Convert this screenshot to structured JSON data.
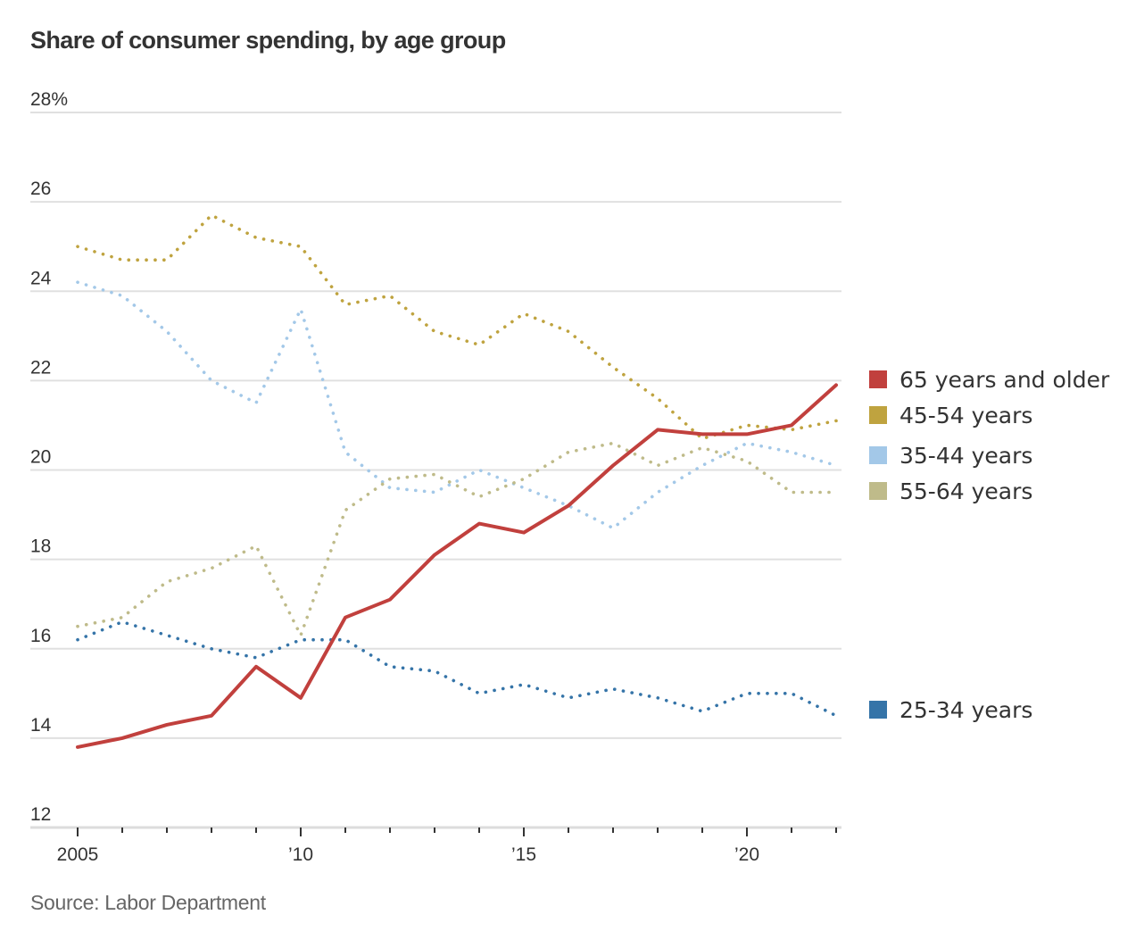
{
  "title": "Share of consumer spending, by age group",
  "source": "Source: Labor Department",
  "chart_data": {
    "type": "line",
    "title": "Share of consumer spending, by age group",
    "xlabel": "",
    "ylabel": "",
    "x": [
      2005,
      2006,
      2007,
      2008,
      2009,
      2010,
      2011,
      2012,
      2013,
      2014,
      2015,
      2016,
      2017,
      2018,
      2019,
      2020,
      2021,
      2022
    ],
    "xlim": [
      2005,
      2022
    ],
    "ylim": [
      12,
      28
    ],
    "y_ticks": [
      {
        "value": 28,
        "label": "28%"
      },
      {
        "value": 26,
        "label": "26"
      },
      {
        "value": 24,
        "label": "24"
      },
      {
        "value": 22,
        "label": "22"
      },
      {
        "value": 20,
        "label": "20"
      },
      {
        "value": 18,
        "label": "18"
      },
      {
        "value": 16,
        "label": "16"
      },
      {
        "value": 14,
        "label": "14"
      },
      {
        "value": 12,
        "label": "12"
      }
    ],
    "x_ticks": [
      {
        "value": 2005,
        "label": "2005"
      },
      {
        "value": 2010,
        "label": "’10"
      },
      {
        "value": 2015,
        "label": "’15"
      },
      {
        "value": 2020,
        "label": "’20"
      }
    ],
    "grid": true,
    "legend_position": "right, inline at line ends",
    "series": [
      {
        "name": "65 years and older",
        "color": "#c1403d",
        "style": "solid",
        "values": [
          13.8,
          14.0,
          14.3,
          14.5,
          15.6,
          14.9,
          16.7,
          17.1,
          18.1,
          18.8,
          18.6,
          19.2,
          20.1,
          20.9,
          20.8,
          20.8,
          21.0,
          21.9
        ]
      },
      {
        "name": "45-54 years",
        "color": "#bfa33f",
        "style": "dotted",
        "values": [
          25.0,
          24.7,
          24.7,
          25.7,
          25.2,
          25.0,
          23.7,
          23.9,
          23.1,
          22.8,
          23.5,
          23.1,
          22.3,
          21.6,
          20.7,
          21.0,
          20.9,
          21.1
        ]
      },
      {
        "name": "35-44 years",
        "color": "#a3c8e8",
        "style": "dotted",
        "values": [
          24.2,
          23.9,
          23.1,
          22.0,
          21.5,
          23.6,
          20.4,
          19.6,
          19.5,
          20.0,
          19.6,
          19.2,
          18.7,
          19.5,
          20.1,
          20.6,
          20.4,
          20.1
        ]
      },
      {
        "name": "55-64 years",
        "color": "#bfbb8a",
        "style": "dotted",
        "values": [
          16.5,
          16.7,
          17.5,
          17.8,
          18.3,
          16.3,
          19.1,
          19.8,
          19.9,
          19.4,
          19.8,
          20.4,
          20.6,
          20.1,
          20.5,
          20.2,
          19.5,
          19.5
        ]
      },
      {
        "name": "25-34 years",
        "color": "#3574a8",
        "style": "dotted",
        "values": [
          16.2,
          16.6,
          16.3,
          16.0,
          15.8,
          16.2,
          16.2,
          15.6,
          15.5,
          15.0,
          15.2,
          14.9,
          15.1,
          14.9,
          14.6,
          15.0,
          15.0,
          14.5
        ]
      }
    ],
    "legend": [
      {
        "label": "65 years and older",
        "color": "#c1403d"
      },
      {
        "label": "45-54 years",
        "color": "#bfa33f"
      },
      {
        "label": "35-44 years",
        "color": "#a3c8e8"
      },
      {
        "label": "55-64 years",
        "color": "#bfbb8a"
      },
      {
        "label": "25-34 years",
        "color": "#3574a8"
      }
    ]
  }
}
